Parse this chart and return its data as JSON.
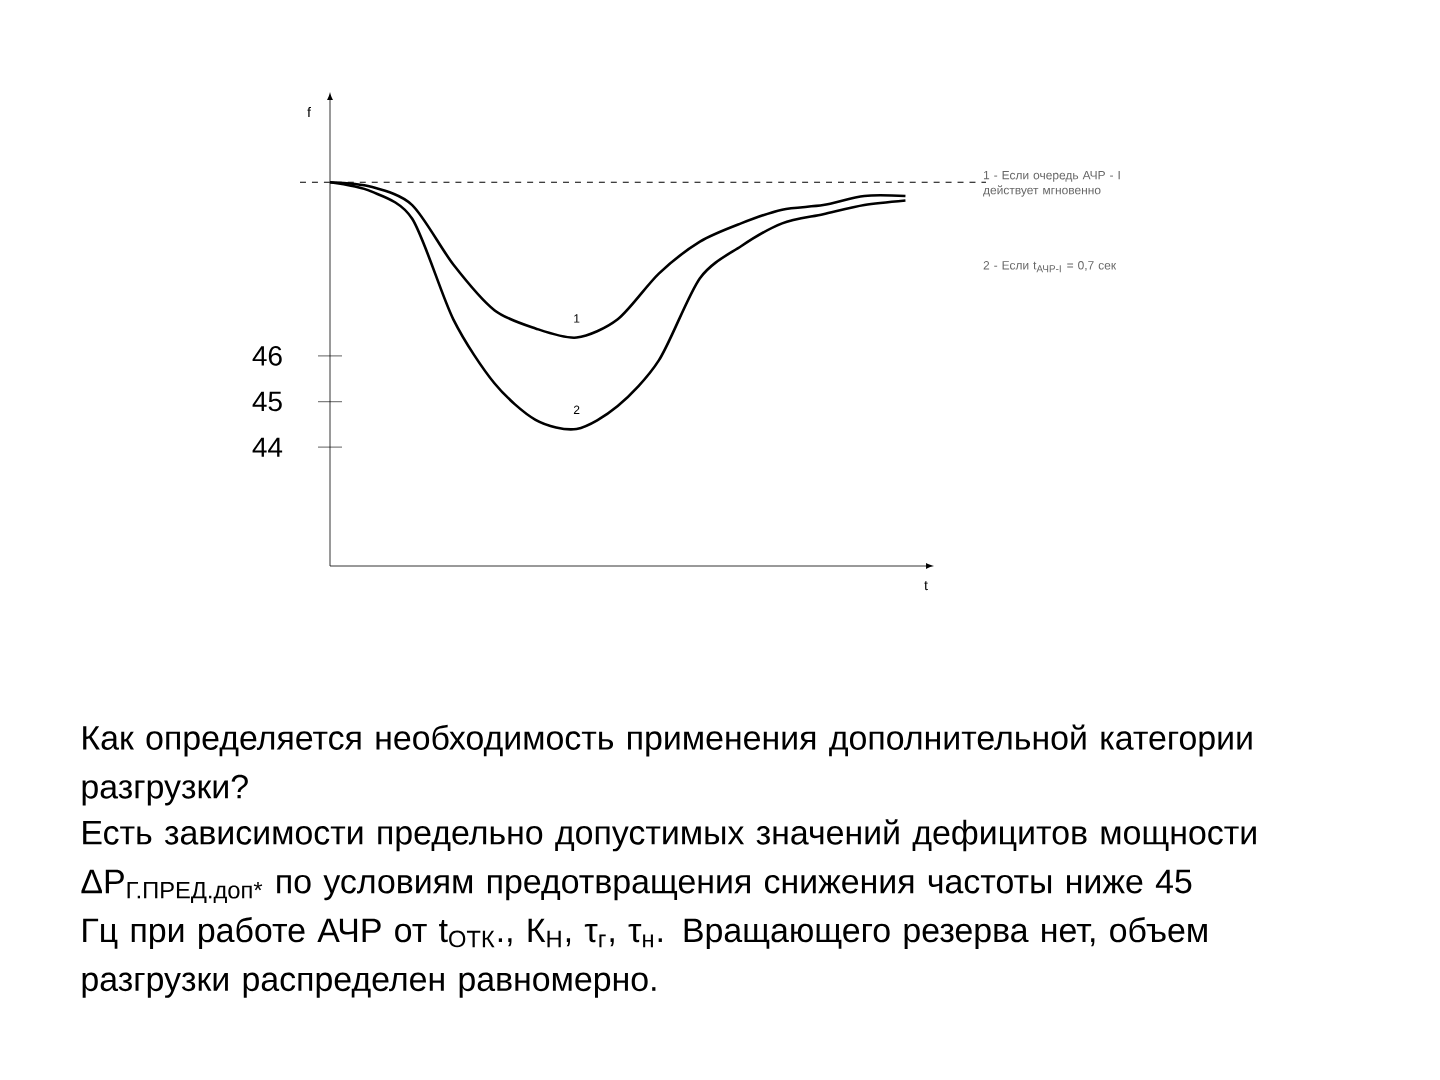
{
  "chart_data": {
    "type": "line",
    "xlabel": "t",
    "ylabel": "f",
    "categories": [
      null,
      null,
      null,
      null,
      null,
      null,
      null,
      null,
      null,
      null,
      null,
      null,
      null,
      null,
      null
    ],
    "series": [
      {
        "name": "1",
        "color": "#000000",
        "values": [
          49.8,
          49.7,
          49.3,
          48.0,
          47.0,
          46.6,
          46.4,
          46.8,
          47.8,
          48.5,
          48.9,
          49.2,
          49.3,
          49.5,
          49.5
        ]
      },
      {
        "name": "2",
        "color": "#000000",
        "values": [
          49.8,
          49.6,
          49.0,
          46.8,
          45.4,
          44.6,
          44.4,
          44.9,
          45.9,
          47.7,
          48.4,
          48.9,
          49.1,
          49.3,
          49.4
        ]
      }
    ],
    "ylim": [
      41.4,
      51.6
    ],
    "yticks": [
      44,
      45,
      46
    ],
    "tick_labels": "y",
    "ref_lines": [
      {
        "axis": "y",
        "value": 49.8,
        "line_style": "dashed",
        "color": "#000000"
      }
    ],
    "annotations": [
      "1 - Если очередь АЧР - I действует мгновенно",
      "2 - Если t$_{АЧР-I}$ = 0,7 сек",
      "Как определяется необходимость применения дополнительной категории разгрузки?",
      "Есть зависимости предельно допустимых значений дефицитов мощности ΔP$_{Г.ПРЕД.доп*}$ по условиям предотвращения снижения частоты ниже 45 Гц при работе АЧР от t$_{ОТК}$., К$_{Н}$, τ$_{г}$, τ$_{н}$. Вращающего резерва нет, объем разгрузки распределен равномерно."
    ]
  }
}
